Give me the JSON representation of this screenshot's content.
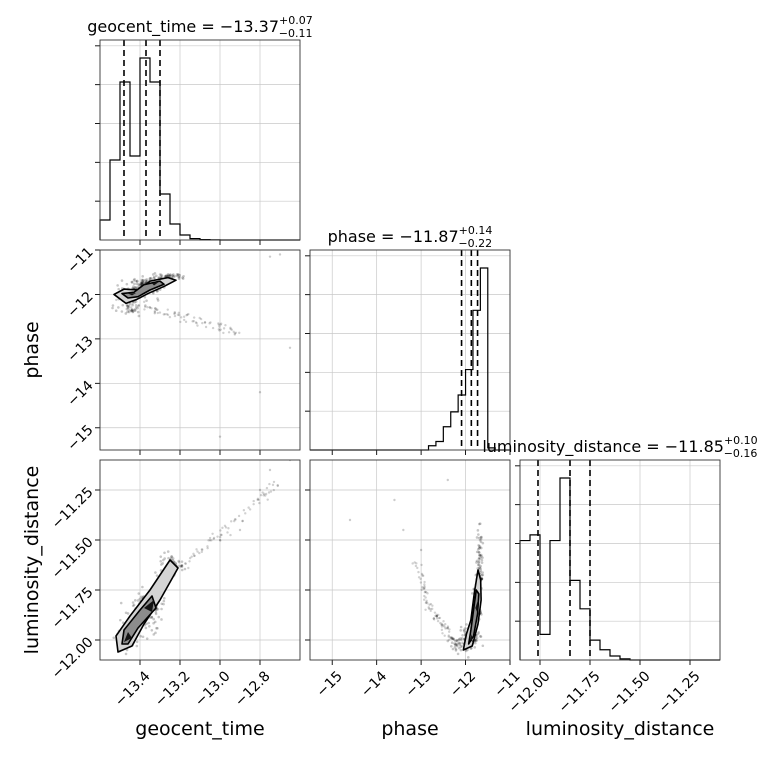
{
  "chart_data": {
    "type": "corner",
    "parameters": [
      "geocent_time",
      "phase",
      "luminosity_distance"
    ],
    "titles": [
      {
        "param": "geocent_time",
        "prefix": "geocent_time = ",
        "median": "−13.37",
        "upper": "+0.07",
        "lower": "−0.11"
      },
      {
        "param": "phase",
        "prefix": "phase = ",
        "median": "−11.87",
        "upper": "+0.14",
        "lower": "−0.22"
      },
      {
        "param": "luminosity_distance",
        "prefix": "luminosity_distance = ",
        "median": "−11.85",
        "upper": "+0.10",
        "lower": "−0.16"
      }
    ],
    "ranges": {
      "geocent_time": [
        -13.6,
        -12.6
      ],
      "phase": [
        -15.5,
        -11.0
      ],
      "luminosity_distance": [
        -12.1,
        -11.1
      ]
    },
    "ticks": {
      "geocent_time": [
        {
          "v": -13.4,
          "t": "−13.4"
        },
        {
          "v": -13.2,
          "t": "−13.2"
        },
        {
          "v": -13.0,
          "t": "−13.0"
        },
        {
          "v": -12.8,
          "t": "−12.8"
        }
      ],
      "phase": [
        {
          "v": -15,
          "t": "−15"
        },
        {
          "v": -14,
          "t": "−14"
        },
        {
          "v": -13,
          "t": "−13"
        },
        {
          "v": -12,
          "t": "−12"
        },
        {
          "v": -11,
          "t": "−11"
        }
      ],
      "luminosity_distance": [
        {
          "v": -12.0,
          "t": "−12.00"
        },
        {
          "v": -11.75,
          "t": "−11.75"
        },
        {
          "v": -11.5,
          "t": "−11.50"
        },
        {
          "v": -11.25,
          "t": "−11.25"
        }
      ]
    },
    "quantiles": {
      "geocent_time": [
        -13.48,
        -13.37,
        -13.3
      ],
      "phase": [
        -12.09,
        -11.87,
        -11.73
      ],
      "luminosity_distance": [
        -12.01,
        -11.85,
        -11.75
      ]
    },
    "histograms": {
      "geocent_time": {
        "range": [
          -13.6,
          -12.6
        ],
        "counts": [
          1,
          4,
          7.9,
          4.2,
          9.1,
          7.9,
          2.3,
          0.8,
          0.25,
          0.07,
          0.02,
          0.01,
          0,
          0,
          0,
          0,
          0,
          0,
          0,
          0
        ]
      },
      "phase": {
        "range": [
          -15.5,
          -11.0
        ],
        "counts": [
          0,
          0,
          0,
          0,
          0,
          0,
          0,
          0,
          0,
          0,
          0,
          0,
          0,
          0,
          0,
          0,
          0.1,
          0.2,
          0.55,
          0.9,
          1.3,
          1.9,
          3.3,
          4.3,
          0.05,
          0,
          0
        ]
      },
      "luminosity_distance": {
        "range": [
          -12.1,
          -11.1
        ],
        "counts": [
          2.1,
          2.2,
          0.45,
          2.1,
          3.2,
          1.4,
          0.9,
          0.35,
          0.18,
          0.07,
          0.02,
          0,
          0,
          0,
          0,
          0,
          0,
          0,
          0,
          0
        ]
      }
    },
    "scatter": {
      "phase_vs_geocent_time": {
        "modes": [
          {
            "x": -13.45,
            "y": -12.0,
            "sx": 0.03,
            "sy": 0.07,
            "n": 90
          },
          {
            "x": -13.36,
            "y": -11.75,
            "sx": 0.035,
            "sy": 0.06,
            "n": 90
          },
          {
            "x": -13.4,
            "y": -11.9,
            "sx": 0.05,
            "sy": 0.1,
            "n": 70
          },
          {
            "x": -13.25,
            "y": -11.6,
            "sx": 0.04,
            "sy": 0.04,
            "n": 50
          },
          {
            "x": -13.45,
            "y": -12.3,
            "sx": 0.04,
            "sy": 0.08,
            "n": 40
          }
        ],
        "trail": [
          [
            -13.5,
            -12.1
          ],
          [
            -13.3,
            -12.4
          ],
          [
            -13.1,
            -12.6
          ],
          [
            -12.9,
            -12.9
          ]
        ],
        "outliers": [
          [
            -12.7,
            -11.1
          ],
          [
            -12.75,
            -11.15
          ],
          [
            -12.65,
            -13.2
          ],
          [
            -12.8,
            -14.2
          ],
          [
            -13.0,
            -15.2
          ]
        ],
        "contour_outer": [
          [
            -13.47,
            -12.2
          ],
          [
            -13.53,
            -12.0
          ],
          [
            -13.48,
            -11.88
          ],
          [
            -13.4,
            -11.9
          ],
          [
            -13.35,
            -11.7
          ],
          [
            -13.26,
            -11.62
          ],
          [
            -13.22,
            -11.68
          ],
          [
            -13.28,
            -11.82
          ],
          [
            -13.36,
            -11.98
          ],
          [
            -13.42,
            -12.12
          ]
        ],
        "contour_inner": [
          [
            -13.46,
            -12.08
          ],
          [
            -13.49,
            -11.98
          ],
          [
            -13.43,
            -11.95
          ],
          [
            -13.38,
            -11.78
          ],
          [
            -13.3,
            -11.7
          ],
          [
            -13.28,
            -11.77
          ],
          [
            -13.35,
            -11.9
          ],
          [
            -13.41,
            -12.05
          ]
        ],
        "core": [
          [
            -13.44,
            -12.02
          ],
          [
            -13.46,
            -11.98
          ],
          [
            -13.42,
            -11.97
          ],
          [
            -13.34,
            -11.75
          ],
          [
            -13.31,
            -11.73
          ],
          [
            -13.33,
            -11.8
          ]
        ]
      },
      "luminosity_distance_vs_geocent_time": {
        "modes": [
          {
            "x": -13.47,
            "y": -11.99,
            "sx": 0.025,
            "sy": 0.025,
            "n": 110
          },
          {
            "x": -13.36,
            "y": -11.82,
            "sx": 0.03,
            "sy": 0.03,
            "n": 110
          },
          {
            "x": -13.25,
            "y": -11.63,
            "sx": 0.03,
            "sy": 0.03,
            "n": 60
          },
          {
            "x": -13.4,
            "y": -11.9,
            "sx": 0.05,
            "sy": 0.05,
            "n": 60
          }
        ],
        "trail": [
          [
            -13.3,
            -11.7
          ],
          [
            -13.1,
            -11.55
          ],
          [
            -12.9,
            -11.4
          ],
          [
            -12.7,
            -11.2
          ]
        ],
        "outliers": [
          [
            -12.65,
            -11.1
          ],
          [
            -12.75,
            -11.15
          ],
          [
            -12.8,
            -11.25
          ],
          [
            -12.9,
            -11.45
          ],
          [
            -13.0,
            -11.5
          ]
        ],
        "contour_outer": [
          [
            -13.51,
            -12.06
          ],
          [
            -13.52,
            -11.98
          ],
          [
            -13.45,
            -11.88
          ],
          [
            -13.35,
            -11.75
          ],
          [
            -13.25,
            -11.6
          ],
          [
            -13.21,
            -11.64
          ],
          [
            -13.3,
            -11.8
          ],
          [
            -13.38,
            -11.92
          ],
          [
            -13.44,
            -12.03
          ]
        ],
        "contour_inner": [
          [
            -13.49,
            -12.02
          ],
          [
            -13.48,
            -11.95
          ],
          [
            -13.4,
            -11.85
          ],
          [
            -13.34,
            -11.78
          ],
          [
            -13.32,
            -11.84
          ],
          [
            -13.41,
            -11.94
          ],
          [
            -13.46,
            -12.02
          ]
        ],
        "core": [
          [
            -13.48,
            -12.01
          ],
          [
            -13.46,
            -11.96
          ],
          [
            -13.44,
            -11.99
          ],
          [
            -13.38,
            -11.84
          ],
          [
            -13.33,
            -11.8
          ],
          [
            -13.34,
            -11.86
          ]
        ]
      },
      "luminosity_distance_vs_phase": {
        "modes": [
          {
            "x": -11.75,
            "y": -11.84,
            "sx": 0.05,
            "sy": 0.03,
            "n": 110
          },
          {
            "x": -11.7,
            "y": -11.7,
            "sx": 0.04,
            "sy": 0.04,
            "n": 60
          },
          {
            "x": -11.87,
            "y": -11.98,
            "sx": 0.08,
            "sy": 0.025,
            "n": 90
          },
          {
            "x": -12.05,
            "y": -12.02,
            "sx": 0.15,
            "sy": 0.03,
            "n": 70
          },
          {
            "x": -11.68,
            "y": -11.55,
            "sx": 0.03,
            "sy": 0.06,
            "n": 40
          }
        ],
        "trail": [
          [
            -12.3,
            -12.0
          ],
          [
            -12.6,
            -11.9
          ],
          [
            -12.9,
            -11.8
          ],
          [
            -13.1,
            -11.6
          ]
        ],
        "outliers": [
          [
            -14.6,
            -11.4
          ],
          [
            -13.6,
            -11.3
          ],
          [
            -13.4,
            -11.45
          ],
          [
            -13.0,
            -11.55
          ],
          [
            -12.4,
            -11.2
          ]
        ],
        "contour_outer": [
          [
            -12.05,
            -12.05
          ],
          [
            -11.85,
            -12.03
          ],
          [
            -11.72,
            -11.92
          ],
          [
            -11.65,
            -11.8
          ],
          [
            -11.66,
            -11.7
          ],
          [
            -11.72,
            -11.65
          ],
          [
            -11.8,
            -11.76
          ],
          [
            -11.88,
            -11.9
          ],
          [
            -11.98,
            -11.97
          ]
        ],
        "contour_inner": [
          [
            -11.93,
            -12.02
          ],
          [
            -11.82,
            -11.98
          ],
          [
            -11.73,
            -11.87
          ],
          [
            -11.7,
            -11.77
          ],
          [
            -11.76,
            -11.75
          ],
          [
            -11.82,
            -11.85
          ],
          [
            -11.88,
            -11.95
          ]
        ],
        "core": [
          [
            -11.9,
            -12.0
          ],
          [
            -11.86,
            -11.97
          ],
          [
            -11.84,
            -12.01
          ],
          [
            -11.78,
            -11.84
          ],
          [
            -11.72,
            -11.8
          ],
          [
            -11.74,
            -11.86
          ]
        ]
      }
    }
  }
}
